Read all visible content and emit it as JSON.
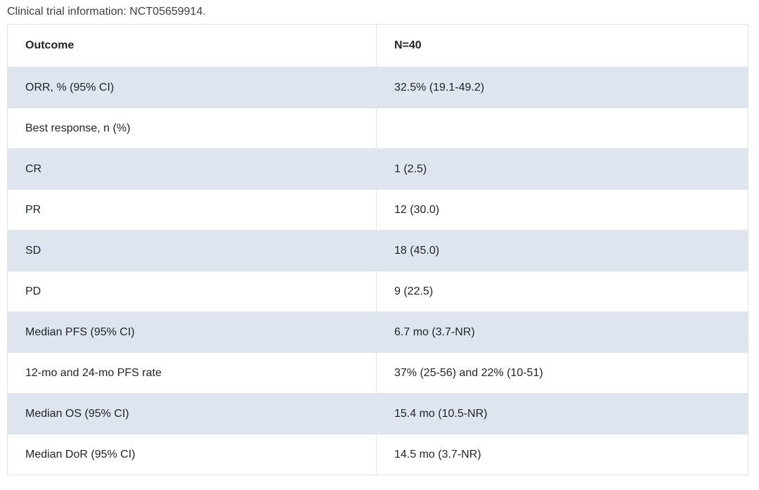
{
  "caption": "Clinical trial information: NCT05659914.",
  "table": {
    "columns": [
      "Outcome",
      "N=40"
    ],
    "rows": [
      {
        "outcome": "ORR, % (95% CI)",
        "value": "32.5% (19.1-49.2)"
      },
      {
        "outcome": "Best response, n (%)",
        "value": ""
      },
      {
        "outcome": "CR",
        "value": "1 (2.5)"
      },
      {
        "outcome": "PR",
        "value": "12 (30.0)"
      },
      {
        "outcome": "SD",
        "value": "18 (45.0)"
      },
      {
        "outcome": "PD",
        "value": "9 (22.5)"
      },
      {
        "outcome": "Median PFS (95% CI)",
        "value": "6.7 mo (3.7-NR)"
      },
      {
        "outcome": "12-mo and 24-mo PFS rate",
        "value": "37% (25-56) and 22% (10-51)"
      },
      {
        "outcome": "Median OS (95% CI)",
        "value": "15.4 mo (10.5-NR)"
      },
      {
        "outcome": "Median DoR (95% CI)",
        "value": "14.5 mo (3.7-NR)"
      }
    ]
  },
  "colors": {
    "stripe_row_background": "#dee5ee",
    "border": "#e3e4e6",
    "text": "#212529"
  }
}
